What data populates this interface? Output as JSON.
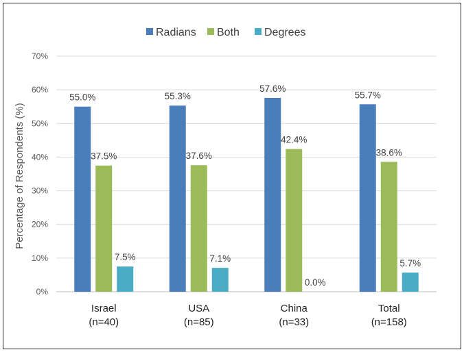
{
  "chart_data": {
    "type": "bar",
    "title": "",
    "xlabel": "",
    "ylabel": "Percentage of Respondents (%)",
    "ylim": [
      0,
      70
    ],
    "yticks": [
      "0%",
      "10%",
      "20%",
      "30%",
      "40%",
      "50%",
      "60%",
      "70%"
    ],
    "grid": true,
    "legend_position": "top",
    "categories": [
      [
        "Israel",
        "(n=40)"
      ],
      [
        "USA",
        "(n=85)"
      ],
      [
        "China",
        "(n=33)"
      ],
      [
        "Total",
        "(n=158)"
      ]
    ],
    "series": [
      {
        "name": "Radians",
        "color": "#4a7ebb",
        "values": [
          55.0,
          55.3,
          57.6,
          55.7
        ],
        "labels": [
          "55.0%",
          "55.3%",
          "57.6%",
          "55.7%"
        ]
      },
      {
        "name": "Both",
        "color": "#9bbb59",
        "values": [
          37.5,
          37.6,
          42.4,
          38.6
        ],
        "labels": [
          "37.5%",
          "37.6%",
          "42.4%",
          "38.6%"
        ]
      },
      {
        "name": "Degrees",
        "color": "#4bacc6",
        "values": [
          7.5,
          7.1,
          0.0,
          5.7
        ],
        "labels": [
          "7.5%",
          "7.1%",
          "0.0%",
          "5.7%"
        ]
      }
    ]
  }
}
